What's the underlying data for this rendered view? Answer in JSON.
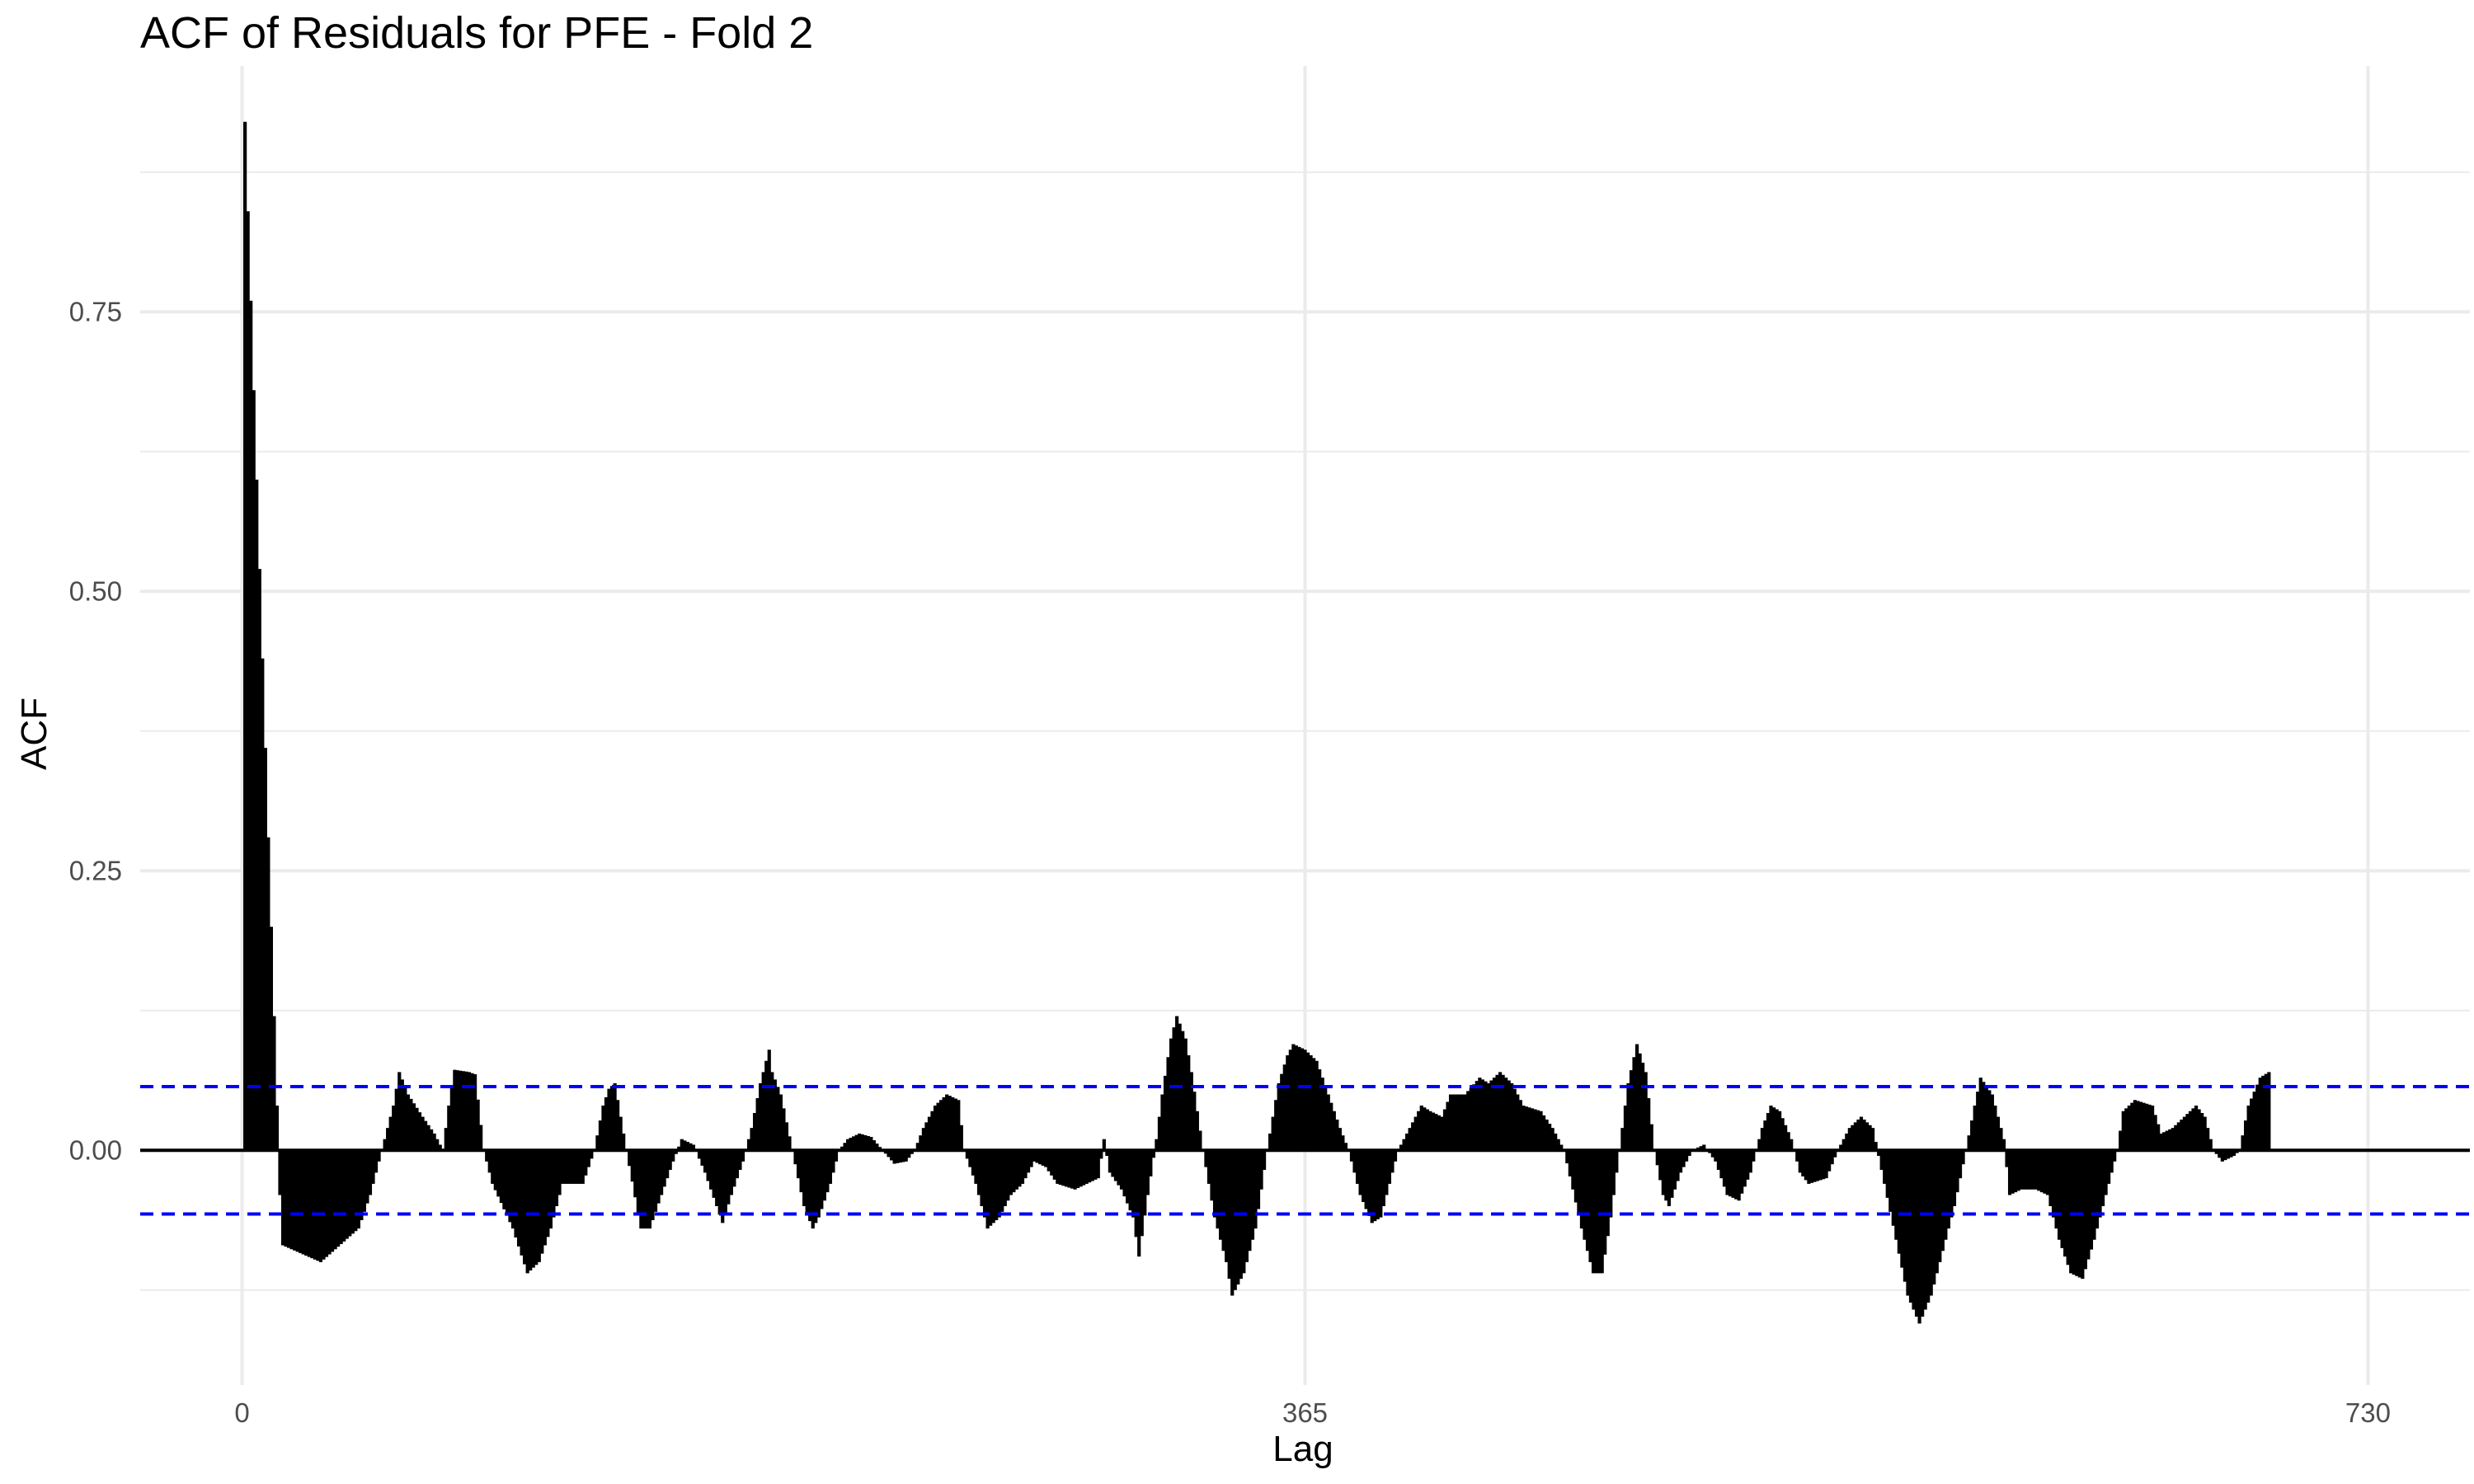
{
  "chart_data": {
    "type": "bar",
    "title": "ACF of Residuals for PFE - Fold 2",
    "xlabel": "Lag",
    "ylabel": "ACF",
    "xlim": [
      -35,
      765
    ],
    "ylim": [
      -0.21,
      0.97
    ],
    "x_ticks": [
      0,
      365,
      730
    ],
    "x_tick_labels": [
      "0",
      "365",
      "730"
    ],
    "y_ticks": [
      0.0,
      0.25,
      0.5,
      0.75
    ],
    "y_tick_labels": [
      "0.00",
      "0.25",
      "0.50",
      "0.75"
    ],
    "grid": true,
    "colors": {
      "bars": "#000000",
      "confidence": "#0000ff",
      "grid": "#ebebeb",
      "zero_line": "#000000"
    },
    "confidence_band": [
      -0.057,
      0.057
    ],
    "keypoints": [
      [
        1,
        0.92
      ],
      [
        2,
        0.84
      ],
      [
        3,
        0.76
      ],
      [
        4,
        0.68
      ],
      [
        5,
        0.6
      ],
      [
        6,
        0.52
      ],
      [
        7,
        0.44
      ],
      [
        8,
        0.36
      ],
      [
        9,
        0.28
      ],
      [
        10,
        0.2
      ],
      [
        11,
        0.12
      ],
      [
        12,
        0.04
      ],
      [
        13,
        -0.04
      ],
      [
        14,
        -0.085
      ],
      [
        27,
        -0.1
      ],
      [
        40,
        -0.07
      ],
      [
        44,
        -0.04
      ],
      [
        48,
        0.0
      ],
      [
        52,
        0.04
      ],
      [
        54,
        0.07
      ],
      [
        57,
        0.05
      ],
      [
        62,
        0.03
      ],
      [
        66,
        0.015
      ],
      [
        69,
        0.0
      ],
      [
        71,
        0.04
      ],
      [
        73,
        0.072
      ],
      [
        78,
        0.07
      ],
      [
        80,
        0.068
      ],
      [
        83,
        0.0
      ],
      [
        86,
        -0.03
      ],
      [
        93,
        -0.07
      ],
      [
        98,
        -0.11
      ],
      [
        102,
        -0.1
      ],
      [
        106,
        -0.07
      ],
      [
        110,
        -0.03
      ],
      [
        117,
        -0.03
      ],
      [
        121,
        0.0
      ],
      [
        124,
        0.04
      ],
      [
        126,
        0.055
      ],
      [
        128,
        0.06
      ],
      [
        132,
        0.0
      ],
      [
        137,
        -0.07
      ],
      [
        140,
        -0.07
      ],
      [
        144,
        -0.04
      ],
      [
        148,
        -0.01
      ],
      [
        151,
        0.01
      ],
      [
        155,
        0.005
      ],
      [
        159,
        -0.02
      ],
      [
        163,
        -0.05
      ],
      [
        165,
        -0.065
      ],
      [
        168,
        -0.04
      ],
      [
        172,
        -0.01
      ],
      [
        175,
        0.02
      ],
      [
        178,
        0.06
      ],
      [
        181,
        0.09
      ],
      [
        182,
        0.07
      ],
      [
        185,
        0.05
      ],
      [
        189,
        0.0
      ],
      [
        193,
        -0.05
      ],
      [
        196,
        -0.07
      ],
      [
        198,
        -0.06
      ],
      [
        202,
        -0.03
      ],
      [
        205,
        0.0
      ],
      [
        208,
        0.01
      ],
      [
        212,
        0.015
      ],
      [
        216,
        0.012
      ],
      [
        220,
        0.0
      ],
      [
        224,
        -0.012
      ],
      [
        228,
        -0.01
      ],
      [
        231,
        0.0
      ],
      [
        234,
        0.02
      ],
      [
        238,
        0.04
      ],
      [
        242,
        0.05
      ],
      [
        246,
        0.045
      ],
      [
        248,
        0.0
      ],
      [
        252,
        -0.03
      ],
      [
        256,
        -0.07
      ],
      [
        260,
        -0.06
      ],
      [
        264,
        -0.04
      ],
      [
        268,
        -0.03
      ],
      [
        272,
        -0.01
      ],
      [
        276,
        -0.015
      ],
      [
        280,
        -0.03
      ],
      [
        286,
        -0.035
      ],
      [
        290,
        -0.03
      ],
      [
        294,
        -0.025
      ],
      [
        296,
        0.01
      ],
      [
        298,
        -0.02
      ],
      [
        302,
        -0.035
      ],
      [
        306,
        -0.06
      ],
      [
        308,
        -0.095
      ],
      [
        311,
        -0.04
      ],
      [
        314,
        0.01
      ],
      [
        316,
        0.05
      ],
      [
        319,
        0.1
      ],
      [
        321,
        0.12
      ],
      [
        324,
        0.1
      ],
      [
        326,
        0.07
      ],
      [
        330,
        0.0
      ],
      [
        334,
        -0.06
      ],
      [
        338,
        -0.1
      ],
      [
        340,
        -0.13
      ],
      [
        344,
        -0.11
      ],
      [
        348,
        -0.07
      ],
      [
        352,
        0.0
      ],
      [
        356,
        0.06
      ],
      [
        359,
        0.085
      ],
      [
        361,
        0.095
      ],
      [
        365,
        0.09
      ],
      [
        369,
        0.08
      ],
      [
        373,
        0.05
      ],
      [
        377,
        0.02
      ],
      [
        380,
        0.0
      ],
      [
        384,
        -0.04
      ],
      [
        388,
        -0.065
      ],
      [
        391,
        -0.06
      ],
      [
        394,
        -0.03
      ],
      [
        397,
        0.0
      ],
      [
        401,
        0.02
      ],
      [
        405,
        0.04
      ],
      [
        408,
        0.035
      ],
      [
        412,
        0.03
      ],
      [
        415,
        0.05
      ],
      [
        420,
        0.05
      ],
      [
        425,
        0.065
      ],
      [
        428,
        0.06
      ],
      [
        432,
        0.07
      ],
      [
        436,
        0.06
      ],
      [
        440,
        0.04
      ],
      [
        446,
        0.035
      ],
      [
        450,
        0.02
      ],
      [
        454,
        0.0
      ],
      [
        460,
        -0.07
      ],
      [
        464,
        -0.11
      ],
      [
        467,
        -0.11
      ],
      [
        470,
        -0.06
      ],
      [
        473,
        0.0
      ],
      [
        476,
        0.06
      ],
      [
        479,
        0.095
      ],
      [
        482,
        0.07
      ],
      [
        485,
        0.0
      ],
      [
        488,
        -0.04
      ],
      [
        490,
        -0.05
      ],
      [
        494,
        -0.02
      ],
      [
        498,
        0.0
      ],
      [
        502,
        0.005
      ],
      [
        506,
        -0.01
      ],
      [
        510,
        -0.04
      ],
      [
        514,
        -0.045
      ],
      [
        518,
        -0.02
      ],
      [
        522,
        0.02
      ],
      [
        525,
        0.04
      ],
      [
        528,
        0.035
      ],
      [
        532,
        0.01
      ],
      [
        535,
        -0.02
      ],
      [
        538,
        -0.03
      ],
      [
        544,
        -0.025
      ],
      [
        548,
        0.0
      ],
      [
        552,
        0.02
      ],
      [
        556,
        0.03
      ],
      [
        560,
        0.02
      ],
      [
        564,
        -0.03
      ],
      [
        568,
        -0.08
      ],
      [
        572,
        -0.13
      ],
      [
        576,
        -0.155
      ],
      [
        580,
        -0.13
      ],
      [
        584,
        -0.09
      ],
      [
        588,
        -0.05
      ],
      [
        592,
        0.0
      ],
      [
        595,
        0.04
      ],
      [
        597,
        0.065
      ],
      [
        601,
        0.05
      ],
      [
        605,
        0.01
      ],
      [
        607,
        -0.04
      ],
      [
        611,
        -0.035
      ],
      [
        616,
        -0.035
      ],
      [
        620,
        -0.04
      ],
      [
        624,
        -0.08
      ],
      [
        628,
        -0.11
      ],
      [
        632,
        -0.115
      ],
      [
        636,
        -0.08
      ],
      [
        640,
        -0.04
      ],
      [
        644,
        0.0
      ],
      [
        646,
        0.035
      ],
      [
        650,
        0.045
      ],
      [
        656,
        0.04
      ],
      [
        659,
        0.015
      ],
      [
        663,
        0.02
      ],
      [
        667,
        0.03
      ],
      [
        671,
        0.04
      ],
      [
        674,
        0.03
      ],
      [
        677,
        0.0
      ],
      [
        680,
        -0.01
      ],
      [
        684,
        -0.005
      ],
      [
        686,
        0.0
      ],
      [
        689,
        0.04
      ],
      [
        693,
        0.065
      ],
      [
        696,
        0.07
      ]
    ]
  }
}
